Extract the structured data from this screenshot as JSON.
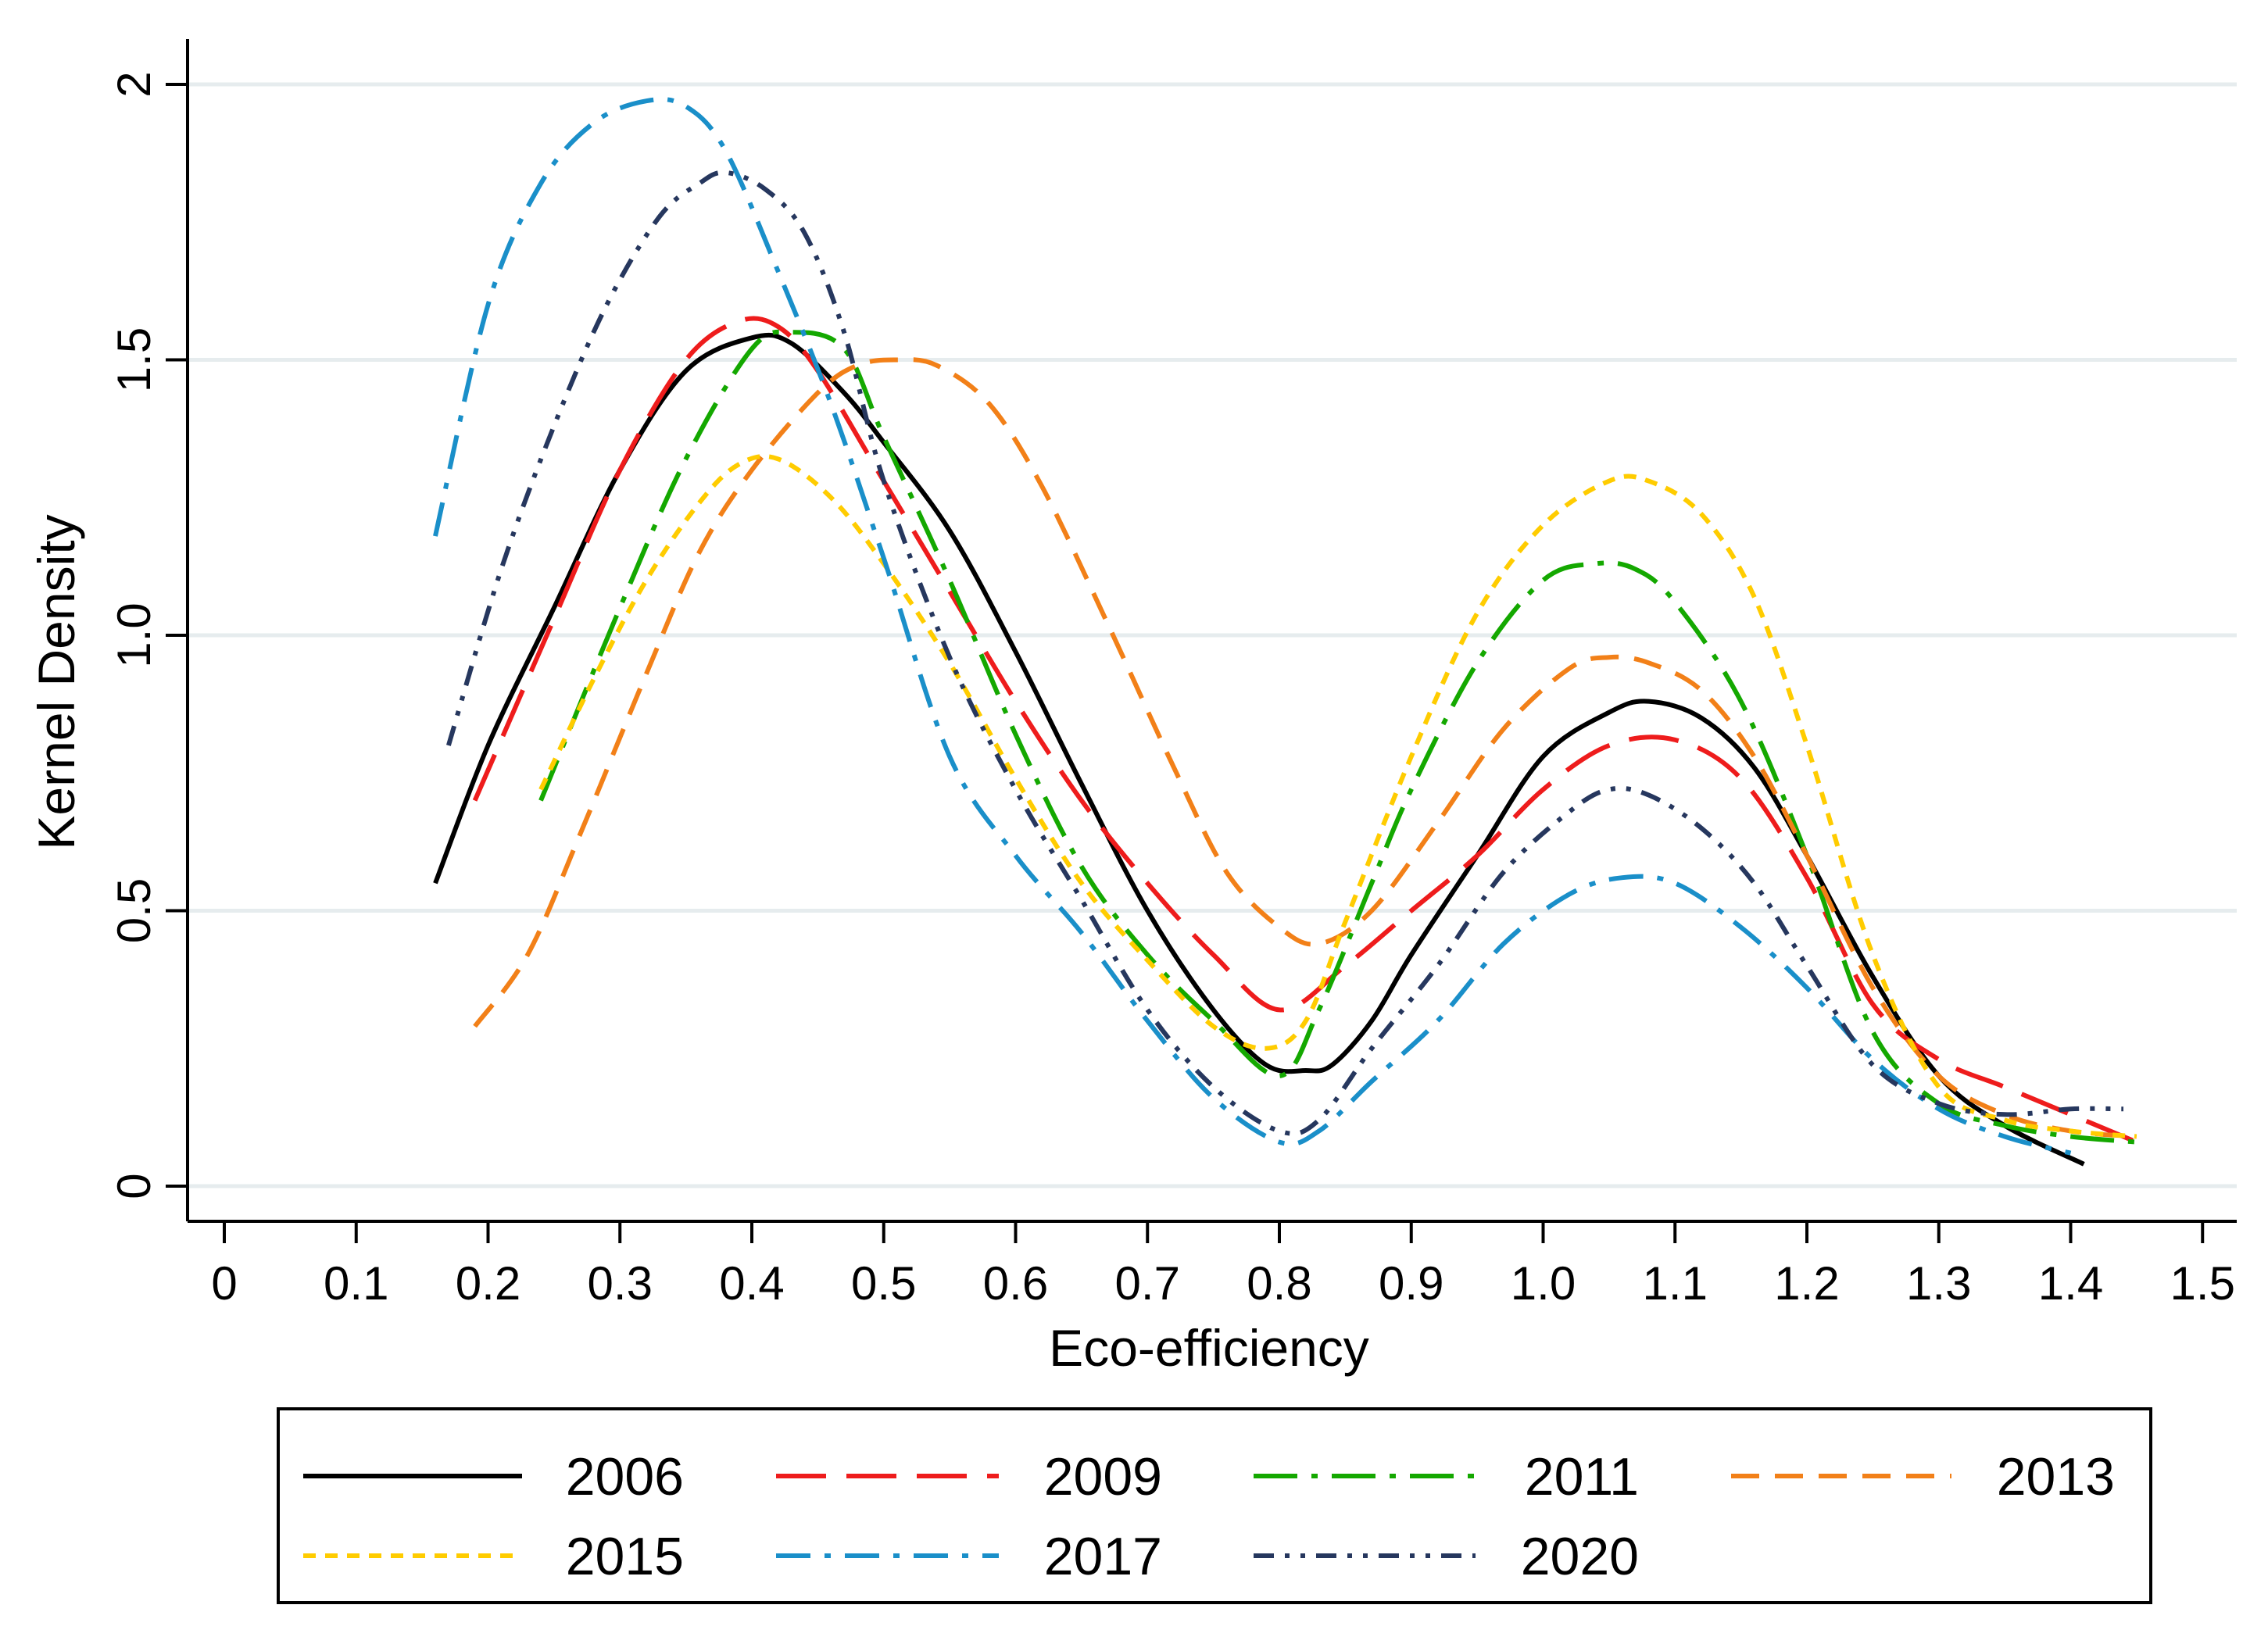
{
  "chart_data": {
    "type": "line",
    "title": "",
    "xlabel": "Eco-efficiency",
    "ylabel": "Kernel Density",
    "xlim": [
      -0.03,
      1.53
    ],
    "ylim": [
      -0.07,
      2.07
    ],
    "x_ticks": [
      0,
      0.1,
      0.2,
      0.3,
      0.4,
      0.5,
      0.6,
      0.7,
      0.8,
      0.9,
      1.0,
      1.1,
      1.2,
      1.3,
      1.4,
      1.5
    ],
    "x_tick_labels": [
      "0",
      "0.1",
      "0.2",
      "0.3",
      "0.4",
      "0.5",
      "0.6",
      "0.7",
      "0.8",
      "0.9",
      "1.0",
      "1.1",
      "1.2",
      "1.3",
      "1.4",
      "1.5"
    ],
    "y_ticks": [
      0,
      0.5,
      1.0,
      1.5,
      2
    ],
    "y_tick_labels": [
      "0",
      "0.5",
      "1.0",
      "1.5",
      "2"
    ],
    "grid": true,
    "legend_position": "bottom",
    "series": [
      {
        "name": "2006",
        "color": "#000000",
        "dash": "solid",
        "x": [
          0.16,
          0.2,
          0.25,
          0.3,
          0.35,
          0.4,
          0.43,
          0.47,
          0.5,
          0.55,
          0.6,
          0.65,
          0.7,
          0.75,
          0.79,
          0.82,
          0.84,
          0.87,
          0.9,
          0.95,
          1.0,
          1.05,
          1.08,
          1.12,
          1.16,
          1.2,
          1.25,
          1.3,
          1.35,
          1.41
        ],
        "y": [
          0.55,
          0.8,
          1.05,
          1.3,
          1.48,
          1.54,
          1.53,
          1.44,
          1.35,
          1.19,
          0.97,
          0.73,
          0.5,
          0.32,
          0.22,
          0.21,
          0.22,
          0.3,
          0.42,
          0.6,
          0.78,
          0.86,
          0.88,
          0.85,
          0.76,
          0.6,
          0.38,
          0.2,
          0.11,
          0.04
        ]
      },
      {
        "name": "2009",
        "color": "#ee1c1c",
        "dash": "long-dash",
        "x": [
          0.19,
          0.25,
          0.3,
          0.35,
          0.39,
          0.42,
          0.45,
          0.5,
          0.55,
          0.6,
          0.65,
          0.7,
          0.75,
          0.8,
          0.85,
          0.9,
          0.95,
          1.0,
          1.05,
          1.1,
          1.15,
          1.2,
          1.25,
          1.3,
          1.35,
          1.4,
          1.45
        ],
        "y": [
          0.7,
          1.03,
          1.3,
          1.5,
          1.57,
          1.56,
          1.48,
          1.28,
          1.08,
          0.88,
          0.7,
          0.55,
          0.42,
          0.32,
          0.4,
          0.5,
          0.6,
          0.72,
          0.8,
          0.81,
          0.74,
          0.56,
          0.33,
          0.23,
          0.18,
          0.13,
          0.08
        ]
      },
      {
        "name": "2011",
        "color": "#14a800",
        "dash": "dash-dot",
        "x": [
          0.24,
          0.3,
          0.35,
          0.4,
          0.43,
          0.47,
          0.5,
          0.55,
          0.6,
          0.65,
          0.7,
          0.75,
          0.8,
          0.83,
          0.87,
          0.9,
          0.95,
          1.0,
          1.04,
          1.07,
          1.1,
          1.15,
          1.2,
          1.25,
          1.3,
          1.35,
          1.4,
          1.45
        ],
        "y": [
          0.7,
          1.05,
          1.32,
          1.52,
          1.55,
          1.52,
          1.36,
          1.1,
          0.82,
          0.58,
          0.42,
          0.3,
          0.2,
          0.32,
          0.55,
          0.72,
          0.95,
          1.1,
          1.13,
          1.12,
          1.06,
          0.88,
          0.6,
          0.28,
          0.15,
          0.11,
          0.09,
          0.08
        ]
      },
      {
        "name": "2013",
        "color": "#f28018",
        "dash": "dash",
        "x": [
          0.19,
          0.23,
          0.27,
          0.32,
          0.36,
          0.4,
          0.45,
          0.48,
          0.51,
          0.54,
          0.58,
          0.62,
          0.67,
          0.72,
          0.76,
          0.8,
          0.83,
          0.87,
          0.92,
          0.97,
          1.02,
          1.05,
          1.08,
          1.12,
          1.16,
          1.2,
          1.25,
          1.3,
          1.35,
          1.4,
          1.45
        ],
        "y": [
          0.29,
          0.42,
          0.64,
          0.93,
          1.15,
          1.3,
          1.44,
          1.49,
          1.5,
          1.49,
          1.42,
          1.27,
          1.02,
          0.76,
          0.57,
          0.47,
          0.44,
          0.5,
          0.66,
          0.83,
          0.94,
          0.96,
          0.95,
          0.9,
          0.78,
          0.6,
          0.36,
          0.2,
          0.13,
          0.1,
          0.09
        ]
      },
      {
        "name": "2015",
        "color": "#ffcc00",
        "dash": "short-dash",
        "x": [
          0.24,
          0.28,
          0.32,
          0.36,
          0.39,
          0.42,
          0.46,
          0.5,
          0.55,
          0.6,
          0.65,
          0.7,
          0.75,
          0.79,
          0.82,
          0.85,
          0.9,
          0.95,
          1.0,
          1.05,
          1.08,
          1.12,
          1.16,
          1.2,
          1.25,
          1.3,
          1.35,
          1.4,
          1.45
        ],
        "y": [
          0.72,
          0.92,
          1.1,
          1.24,
          1.31,
          1.32,
          1.25,
          1.13,
          0.95,
          0.74,
          0.55,
          0.41,
          0.29,
          0.25,
          0.3,
          0.48,
          0.78,
          1.04,
          1.2,
          1.28,
          1.28,
          1.22,
          1.07,
          0.8,
          0.42,
          0.18,
          0.12,
          0.1,
          0.09
        ]
      },
      {
        "name": "2017",
        "color": "#1a8fc9",
        "dash": "dash-dot-long",
        "x": [
          0.16,
          0.2,
          0.24,
          0.28,
          0.32,
          0.35,
          0.38,
          0.42,
          0.46,
          0.5,
          0.55,
          0.6,
          0.65,
          0.7,
          0.75,
          0.8,
          0.83,
          0.87,
          0.92,
          0.97,
          1.02,
          1.06,
          1.1,
          1.15,
          1.2,
          1.25,
          1.3,
          1.35,
          1.4
        ],
        "y": [
          1.18,
          1.6,
          1.82,
          1.93,
          1.97,
          1.96,
          1.88,
          1.66,
          1.42,
          1.14,
          0.78,
          0.6,
          0.46,
          0.3,
          0.16,
          0.08,
          0.1,
          0.19,
          0.3,
          0.44,
          0.53,
          0.56,
          0.55,
          0.47,
          0.36,
          0.23,
          0.14,
          0.09,
          0.06
        ]
      },
      {
        "name": "2020",
        "color": "#26375e",
        "dash": "dash-dot-dot",
        "x": [
          0.17,
          0.21,
          0.25,
          0.29,
          0.33,
          0.36,
          0.38,
          0.41,
          0.44,
          0.47,
          0.5,
          0.55,
          0.6,
          0.65,
          0.7,
          0.75,
          0.8,
          0.83,
          0.87,
          0.92,
          0.97,
          1.02,
          1.05,
          1.08,
          1.12,
          1.16,
          1.2,
          1.25,
          1.3,
          1.35,
          1.4,
          1.44
        ],
        "y": [
          0.8,
          1.12,
          1.38,
          1.6,
          1.76,
          1.82,
          1.84,
          1.81,
          1.73,
          1.55,
          1.28,
          0.96,
          0.72,
          0.52,
          0.32,
          0.18,
          0.1,
          0.12,
          0.25,
          0.4,
          0.57,
          0.68,
          0.72,
          0.71,
          0.65,
          0.55,
          0.4,
          0.22,
          0.15,
          0.13,
          0.14,
          0.14
        ]
      }
    ]
  }
}
